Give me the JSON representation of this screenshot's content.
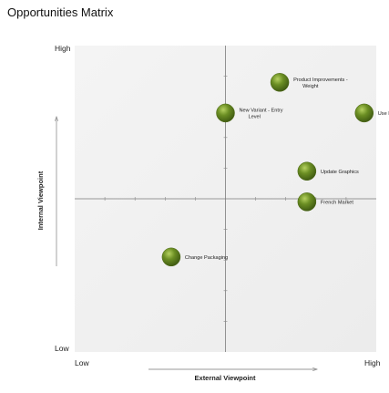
{
  "chart_data": {
    "type": "scatter",
    "title": "Opportunities Matrix",
    "xlabel": "External Viewpoint",
    "ylabel": "Internal Viewpoint",
    "x_low_label": "Low",
    "x_high_label": "High",
    "y_low_label": "Low",
    "y_high_label": "High",
    "xlim": [
      0,
      10
    ],
    "ylim": [
      0,
      10
    ],
    "midpoint": 5,
    "grid": false,
    "legend": "none",
    "marker_color": "#6b8e23",
    "plot_background": "#f2f2f2",
    "points": [
      {
        "name": "Product Improvements - Weight",
        "label_lines": [
          "Product Improvements -",
          "Weight"
        ],
        "x": 6.8,
        "y": 8.8
      },
      {
        "name": "New Variant - Entry Level",
        "label_lines": [
          "New Variant - Entry",
          "Level"
        ],
        "x": 5.0,
        "y": 7.8
      },
      {
        "name": "Use HD Colour Scheme",
        "label_lines": [
          "Use HD Colour Scheme"
        ],
        "x": 9.6,
        "y": 7.8
      },
      {
        "name": "Update Graphics",
        "label_lines": [
          "Update Graphics"
        ],
        "x": 7.7,
        "y": 5.9
      },
      {
        "name": "French Market",
        "label_lines": [
          "French Market"
        ],
        "x": 7.7,
        "y": 4.9
      },
      {
        "name": "Change Packaging",
        "label_lines": [
          "Change Packaging"
        ],
        "x": 3.2,
        "y": 3.1
      }
    ]
  }
}
